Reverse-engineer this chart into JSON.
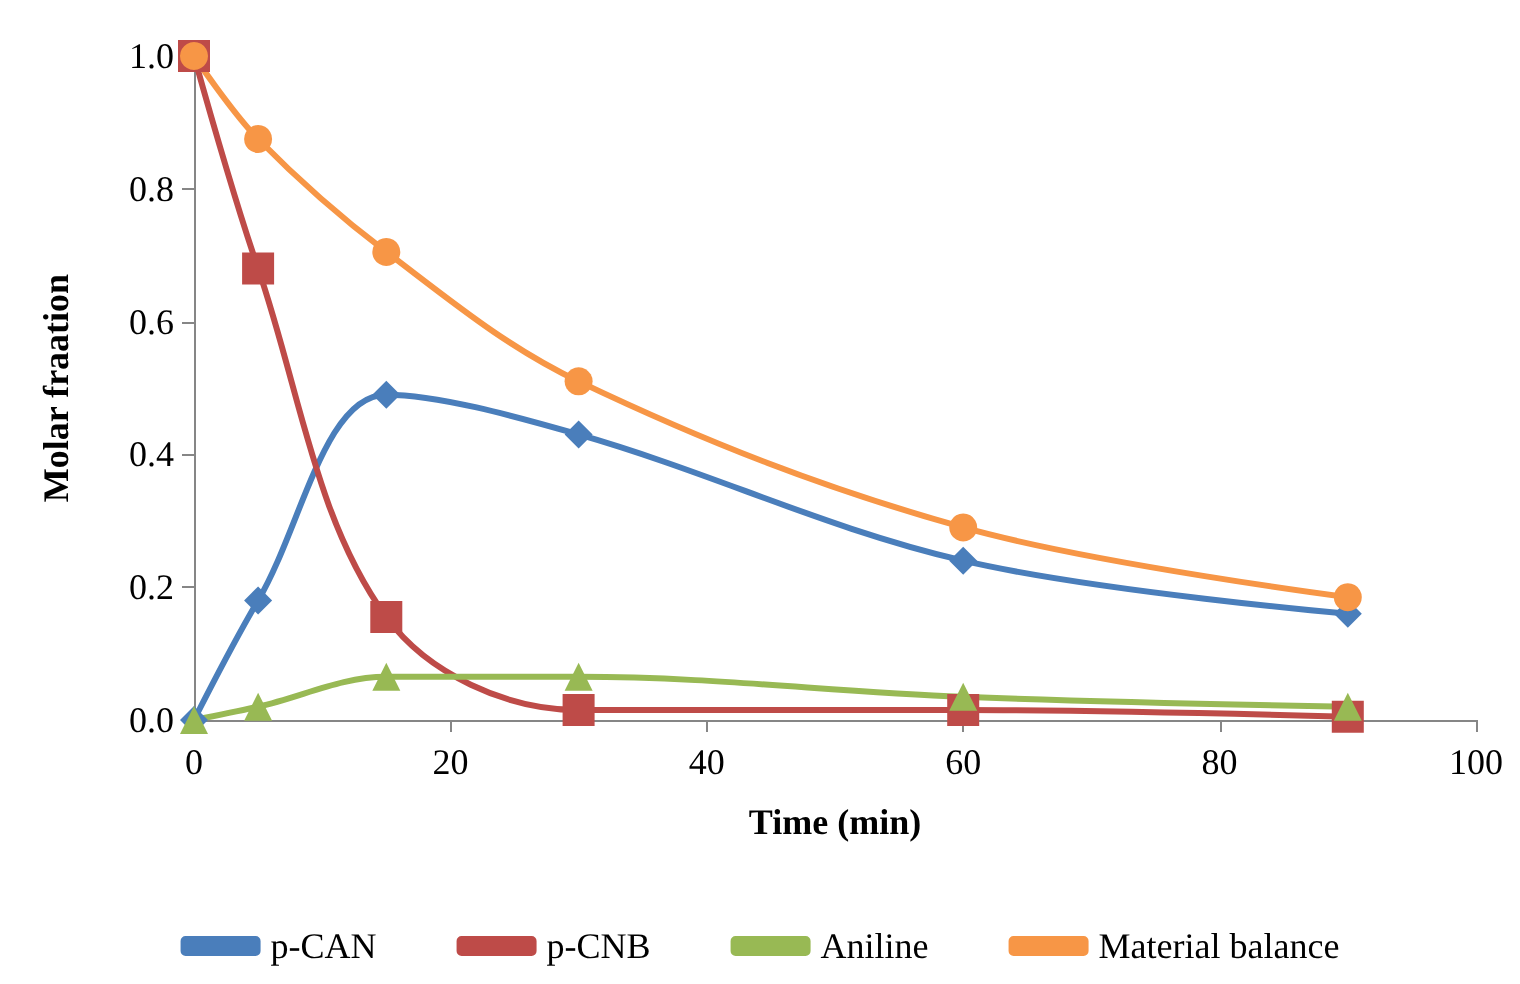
{
  "chart_data": {
    "type": "line",
    "xlabel": "Time (min)",
    "ylabel": "Molar fraation",
    "x": [
      0,
      5,
      15,
      30,
      60,
      90
    ],
    "series": [
      {
        "name": "p-CAN",
        "color": "#4a7ebb",
        "marker": "diamond",
        "values": [
          0,
          0.18,
          0.49,
          0.43,
          0.24,
          0.16
        ]
      },
      {
        "name": "p-CNB",
        "color": "#be4b48",
        "marker": "square",
        "values": [
          1.0,
          0.68,
          0.155,
          0.015,
          0.015,
          0.005
        ]
      },
      {
        "name": "Aniline",
        "color": "#98b954",
        "marker": "triangle",
        "values": [
          0,
          0.02,
          0.065,
          0.065,
          0.035,
          0.02
        ]
      },
      {
        "name": "Material balance",
        "color": "#f79646",
        "marker": "circle",
        "values": [
          1.0,
          0.875,
          0.705,
          0.51,
          0.29,
          0.185
        ]
      }
    ],
    "xlim": [
      0,
      100
    ],
    "xticks": [
      0,
      20,
      40,
      60,
      80,
      100
    ],
    "ylim": [
      0,
      1.0
    ],
    "yticks": [
      {
        "value": 0,
        "label": "0.0"
      },
      {
        "value": 0.2,
        "label": "0.2"
      },
      {
        "value": 0.4,
        "label": "0.4"
      },
      {
        "value": 0.6,
        "label": "0.6"
      },
      {
        "value": 0.8,
        "label": "0.8"
      },
      {
        "value": 1.0,
        "label": "1.0"
      }
    ],
    "grid": false,
    "legend": "bottom",
    "line_style": "solid"
  }
}
